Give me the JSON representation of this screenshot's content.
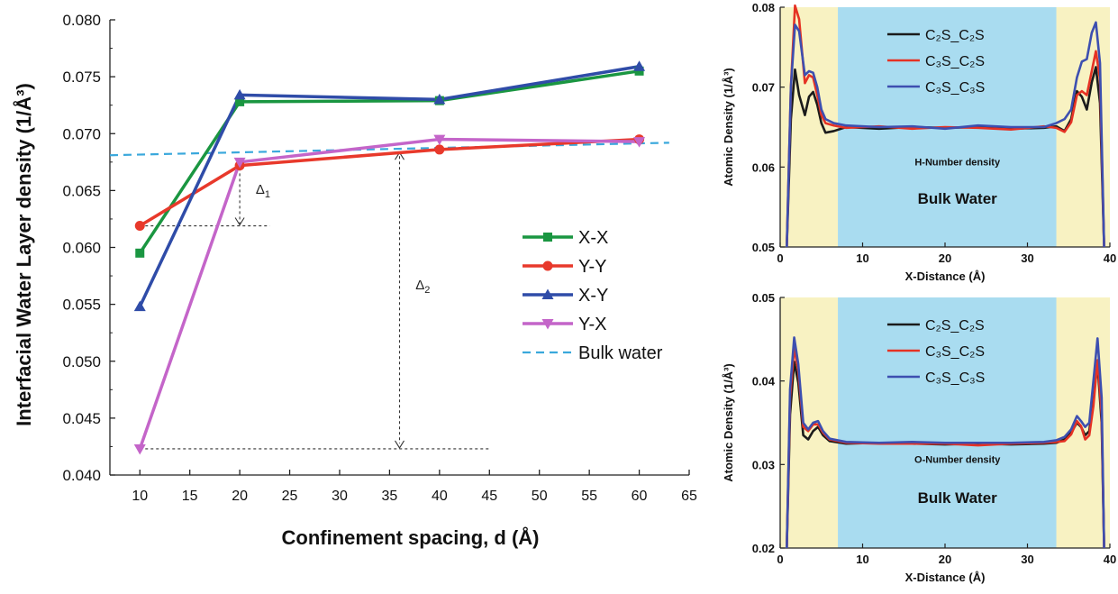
{
  "chart_data": [
    {
      "type": "line",
      "xlabel": "Confinement spacing, d (Å)",
      "ylabel": "Interfacial Water Layer density (1/Å³)",
      "xlim": [
        7,
        65
      ],
      "ylim": [
        0.04,
        0.08
      ],
      "xticks": [
        "10",
        "15",
        "20",
        "25",
        "30",
        "35",
        "40",
        "45",
        "50",
        "55",
        "60",
        "65"
      ],
      "yticks": [
        "0.040",
        "0.045",
        "0.050",
        "0.055",
        "0.060",
        "0.065",
        "0.070",
        "0.075",
        "0.080"
      ],
      "x": [
        10,
        20,
        40,
        60
      ],
      "series": [
        {
          "name": "X-X",
          "color": "#1a9641",
          "marker": "square",
          "values": [
            0.0595,
            0.0728,
            0.0729,
            0.0755
          ]
        },
        {
          "name": "Y-Y",
          "color": "#e8392b",
          "marker": "circle",
          "values": [
            0.0619,
            0.0672,
            0.0686,
            0.0695
          ]
        },
        {
          "name": "X-Y",
          "color": "#2f4ca8",
          "marker": "triangle-up",
          "values": [
            0.0548,
            0.0734,
            0.073,
            0.0759
          ]
        },
        {
          "name": "Y-X",
          "color": "#c465c9",
          "marker": "triangle-down",
          "values": [
            0.0423,
            0.0675,
            0.0695,
            0.0693
          ]
        }
      ],
      "reference_line": {
        "name": "Bulk water",
        "color": "#3aa8dc",
        "from": [
          7,
          0.0681
        ],
        "to": [
          63,
          0.0692
        ]
      },
      "annotations": [
        {
          "label": "Δ",
          "sub": "1",
          "x_data": 20,
          "y_from": 0.0619,
          "y_to": 0.0673
        },
        {
          "label": "Δ",
          "sub": "2",
          "x_data": 36,
          "y_from": 0.0423,
          "y_to": 0.0685
        }
      ],
      "legend_position": "right"
    },
    {
      "type": "line",
      "title": "",
      "inner_label": "H-Number density",
      "region_label": "Bulk Water",
      "xlabel": "X-Distance (Å)",
      "ylabel": "Atomic Density (1/Å³)",
      "xlim": [
        0,
        40
      ],
      "ylim": [
        0.05,
        0.08
      ],
      "xticks": [
        "0",
        "10",
        "20",
        "30",
        "40"
      ],
      "yticks": [
        "0.05",
        "0.06",
        "0.07",
        "0.08"
      ],
      "interface_regions": [
        [
          0,
          7
        ],
        [
          33.5,
          40
        ]
      ],
      "bulk_region": [
        7,
        33.5
      ],
      "series": [
        {
          "name": "C₂S_C₂S",
          "color": "#1b1b1b",
          "x": [
            0.8,
            1.3,
            1.8,
            2.3,
            3.0,
            3.5,
            4.0,
            4.5,
            5.0,
            5.5,
            6.5,
            8,
            12,
            16,
            20,
            24,
            28,
            32,
            33.5,
            34.5,
            35.3,
            36,
            36.6,
            37.2,
            37.8,
            38.3,
            38.8,
            39.3
          ],
          "values": [
            0.05,
            0.066,
            0.0722,
            0.069,
            0.0665,
            0.0688,
            0.0694,
            0.0678,
            0.0655,
            0.0643,
            0.0645,
            0.065,
            0.0648,
            0.065,
            0.0649,
            0.065,
            0.0648,
            0.0649,
            0.0651,
            0.0645,
            0.066,
            0.0695,
            0.0688,
            0.0672,
            0.0706,
            0.0725,
            0.068,
            0.05
          ]
        },
        {
          "name": "C₃S_C₂S",
          "color": "#e53224",
          "x": [
            0.8,
            1.3,
            1.8,
            2.3,
            3.0,
            3.5,
            4.0,
            4.5,
            5.0,
            5.5,
            6.5,
            8,
            12,
            16,
            20,
            24,
            28,
            32,
            33.5,
            34.5,
            35.3,
            36,
            36.6,
            37.2,
            37.8,
            38.3,
            38.8,
            39.3
          ],
          "values": [
            0.05,
            0.07,
            0.0802,
            0.0785,
            0.0705,
            0.0715,
            0.0712,
            0.069,
            0.0665,
            0.0655,
            0.0652,
            0.0649,
            0.0651,
            0.0648,
            0.065,
            0.0649,
            0.0647,
            0.0651,
            0.0649,
            0.0644,
            0.0656,
            0.069,
            0.0695,
            0.069,
            0.072,
            0.0745,
            0.071,
            0.05
          ]
        },
        {
          "name": "C₃S_C₃S",
          "color": "#3d4fb0",
          "x": [
            0.8,
            1.3,
            1.8,
            2.3,
            3.0,
            3.5,
            4.0,
            4.5,
            5.0,
            5.5,
            6.5,
            8,
            12,
            16,
            20,
            24,
            28,
            32,
            33.5,
            34.5,
            35.3,
            36,
            36.6,
            37.2,
            37.8,
            38.3,
            38.8,
            39.3
          ],
          "values": [
            0.05,
            0.07,
            0.0778,
            0.077,
            0.0715,
            0.072,
            0.0718,
            0.07,
            0.0672,
            0.066,
            0.0655,
            0.0652,
            0.065,
            0.0651,
            0.0648,
            0.0652,
            0.065,
            0.065,
            0.0655,
            0.066,
            0.0672,
            0.0712,
            0.0732,
            0.0735,
            0.0768,
            0.0781,
            0.073,
            0.05
          ]
        }
      ],
      "legend_position": "top-center"
    },
    {
      "type": "line",
      "inner_label": "O-Number density",
      "region_label": "Bulk Water",
      "xlabel": "X-Distance (Å)",
      "ylabel": "Atomic Density (1/Å³)",
      "xlim": [
        0,
        40
      ],
      "ylim": [
        0.02,
        0.05
      ],
      "xticks": [
        "0",
        "10",
        "20",
        "30",
        "40"
      ],
      "yticks": [
        "0.02",
        "0.03",
        "0.04",
        "0.05"
      ],
      "interface_regions": [
        [
          0,
          7
        ],
        [
          33.5,
          40
        ]
      ],
      "bulk_region": [
        7,
        33.5
      ],
      "series": [
        {
          "name": "C₂S_C₂S",
          "color": "#1b1b1b",
          "x": [
            0.8,
            1.2,
            1.7,
            2.2,
            2.8,
            3.4,
            4.0,
            4.6,
            5.2,
            6,
            8,
            12,
            16,
            20,
            24,
            28,
            32,
            33.5,
            34.5,
            35.3,
            36,
            36.5,
            37.0,
            37.5,
            38.0,
            38.5,
            39.0,
            39.3
          ],
          "values": [
            0.02,
            0.036,
            0.0423,
            0.0398,
            0.0335,
            0.033,
            0.034,
            0.0345,
            0.0335,
            0.0328,
            0.0325,
            0.0326,
            0.0325,
            0.0324,
            0.0325,
            0.0324,
            0.0325,
            0.0326,
            0.033,
            0.0338,
            0.035,
            0.0345,
            0.0335,
            0.034,
            0.038,
            0.042,
            0.035,
            0.02
          ]
        },
        {
          "name": "C₃S_C₂S",
          "color": "#e53224",
          "x": [
            0.8,
            1.2,
            1.7,
            2.2,
            2.8,
            3.4,
            4.0,
            4.6,
            5.2,
            6,
            8,
            12,
            16,
            20,
            24,
            28,
            32,
            33.5,
            34.5,
            35.3,
            36,
            36.5,
            37.0,
            37.5,
            38.0,
            38.5,
            39.0,
            39.3
          ],
          "values": [
            0.02,
            0.038,
            0.044,
            0.0412,
            0.0345,
            0.034,
            0.0348,
            0.0348,
            0.0338,
            0.033,
            0.0326,
            0.0325,
            0.0325,
            0.0325,
            0.0323,
            0.0325,
            0.0326,
            0.0327,
            0.0328,
            0.0336,
            0.0352,
            0.0346,
            0.033,
            0.0335,
            0.037,
            0.0425,
            0.036,
            0.02
          ]
        },
        {
          "name": "C₃S_C₃S",
          "color": "#3d4fb0",
          "x": [
            0.8,
            1.2,
            1.7,
            2.2,
            2.8,
            3.4,
            4.0,
            4.6,
            5.2,
            6,
            8,
            12,
            16,
            20,
            24,
            28,
            32,
            33.5,
            34.5,
            35.3,
            36,
            36.5,
            37.0,
            37.5,
            38.0,
            38.5,
            39.0,
            39.3
          ],
          "values": [
            0.02,
            0.039,
            0.0452,
            0.042,
            0.035,
            0.0342,
            0.035,
            0.0352,
            0.034,
            0.0331,
            0.0327,
            0.0326,
            0.0327,
            0.0326,
            0.0326,
            0.0326,
            0.0327,
            0.0329,
            0.0333,
            0.0342,
            0.0358,
            0.0352,
            0.0345,
            0.035,
            0.04,
            0.0451,
            0.038,
            0.02
          ]
        }
      ],
      "legend_position": "top-center"
    }
  ]
}
